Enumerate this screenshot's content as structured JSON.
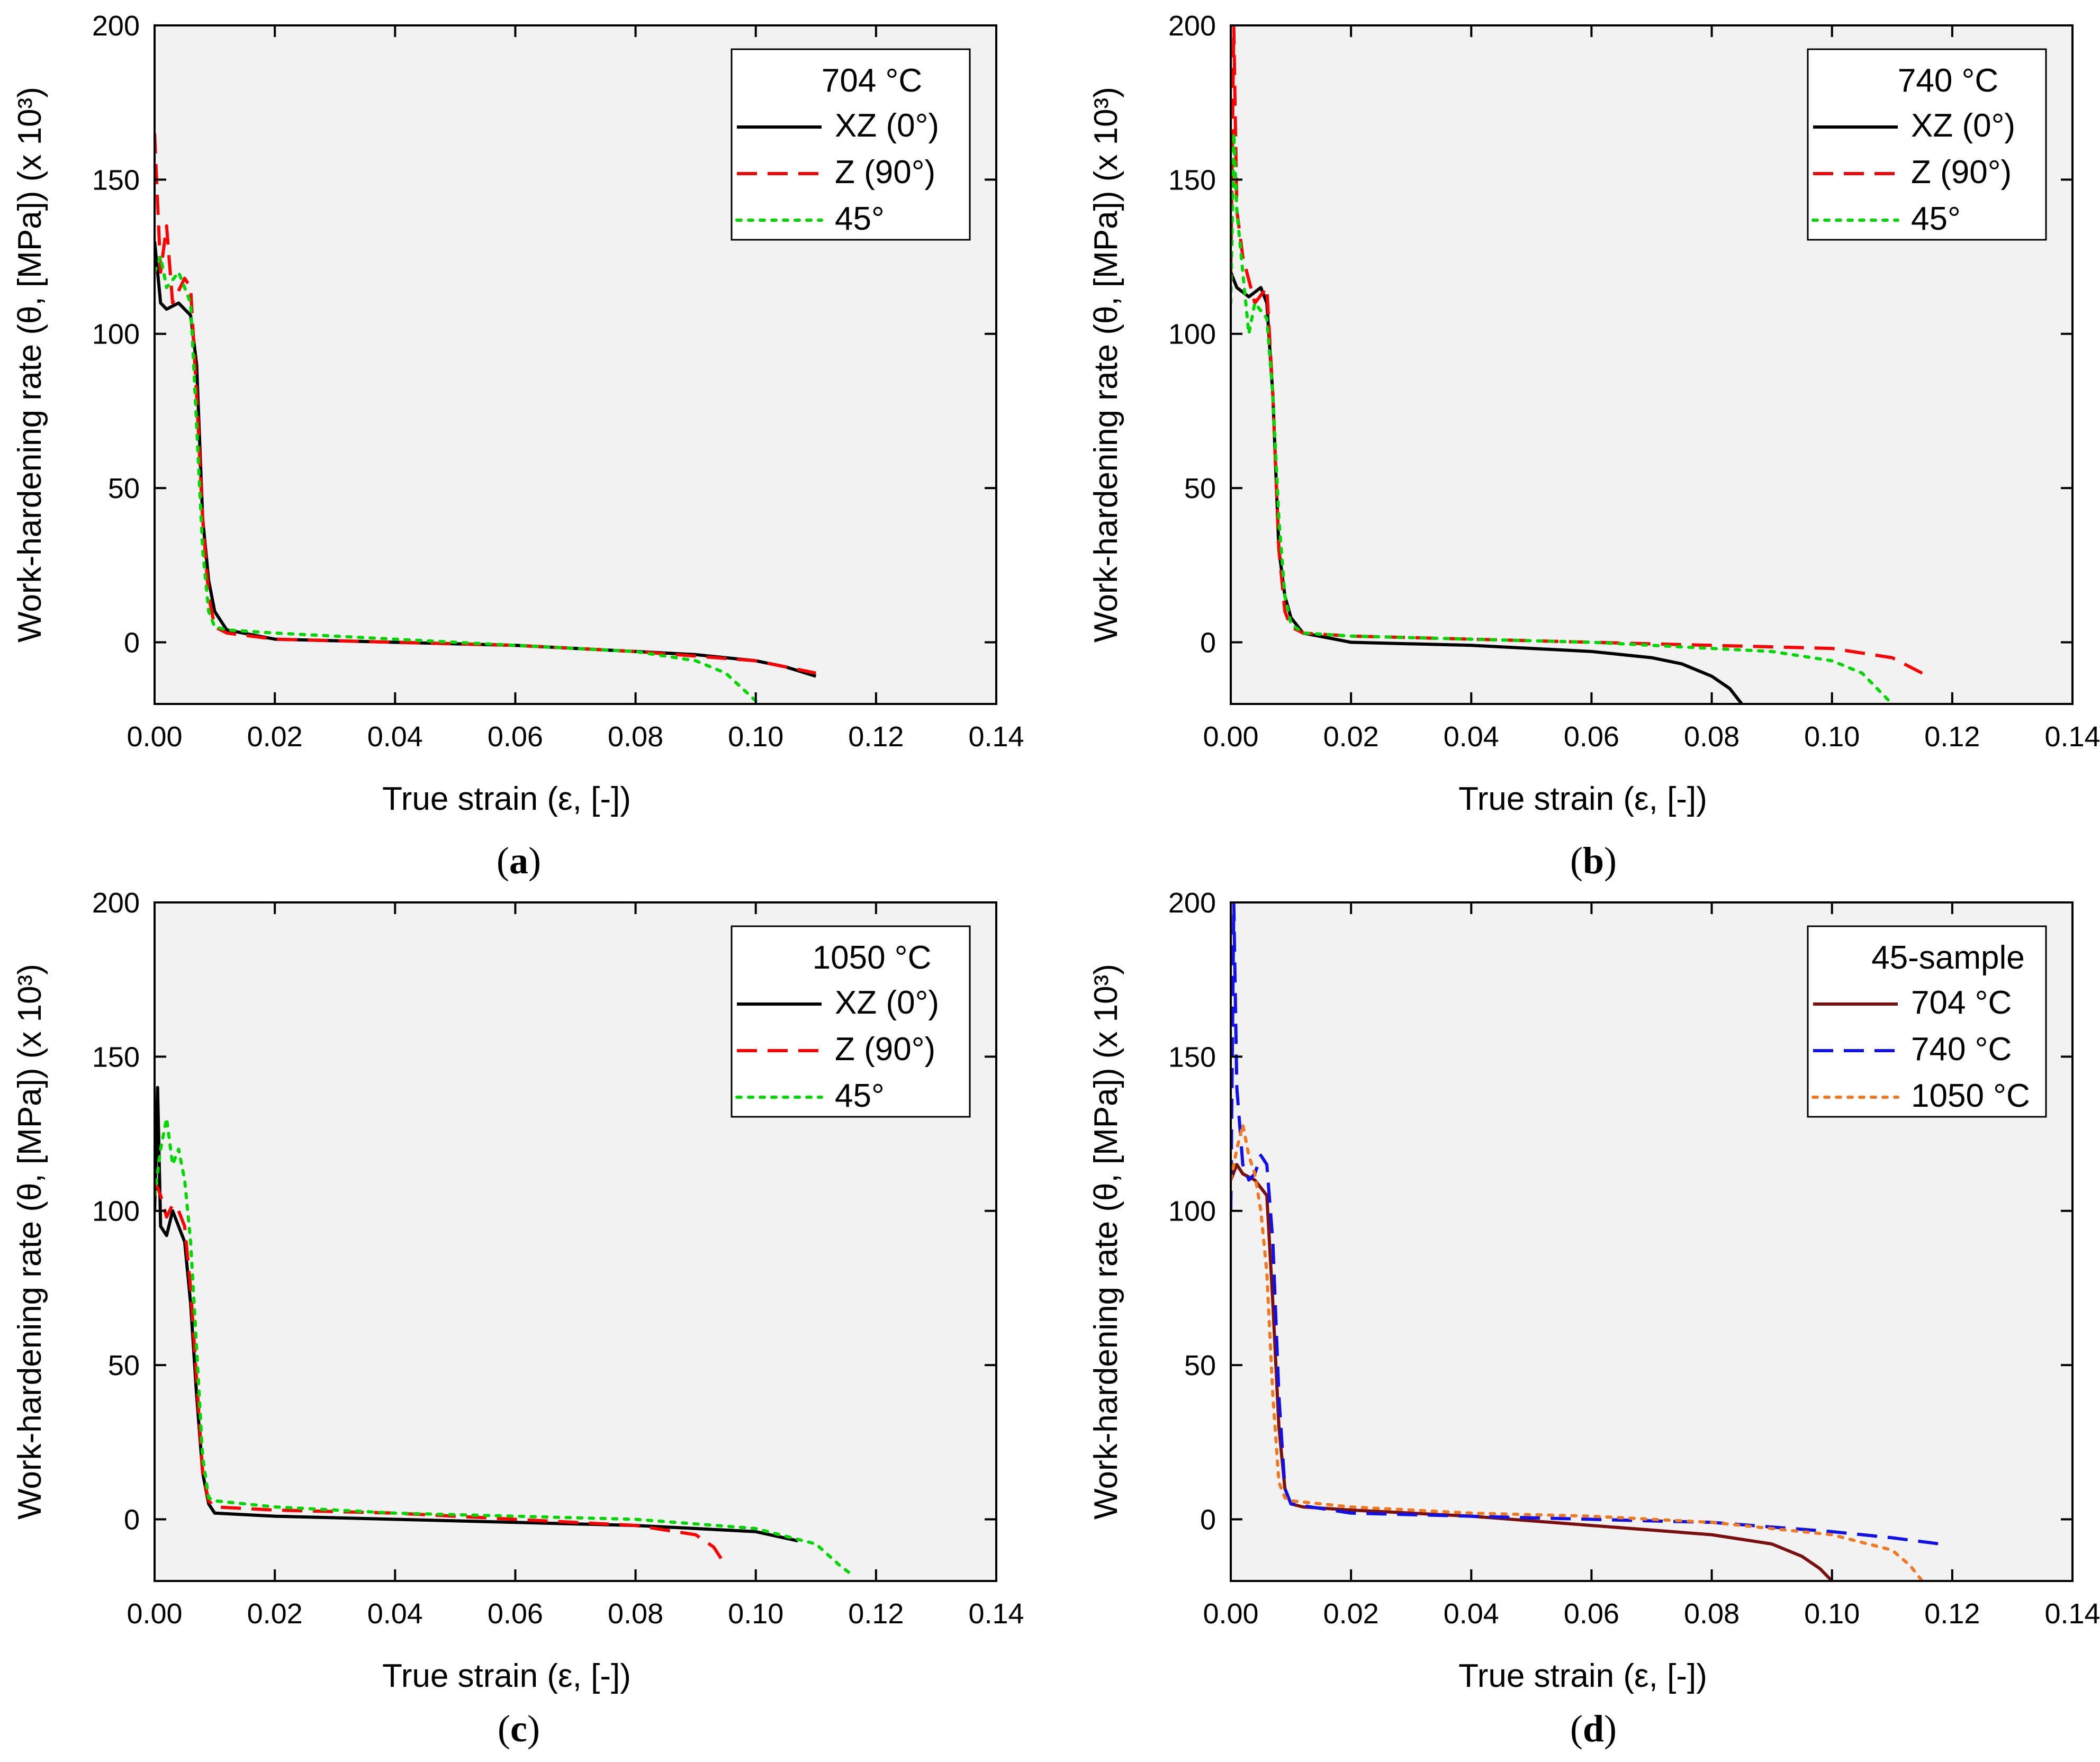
{
  "figure": {
    "panel_labels": [
      "(a)",
      "(b)",
      "(c)",
      "(d)"
    ]
  },
  "chart_data": [
    {
      "type": "line",
      "panel": "a",
      "xlabel": "True strain (ε, [-])",
      "ylabel": "Work-hardening rate (θ, [MPa]) (x 10³)",
      "xlim": [
        0,
        0.14
      ],
      "ylim": [
        -20,
        200
      ],
      "xticks": [
        "0.00",
        "0.02",
        "0.04",
        "0.06",
        "0.08",
        "0.10",
        "0.12",
        "0.14"
      ],
      "yticks": [
        "0",
        "50",
        "100",
        "150",
        "200"
      ],
      "grid": false,
      "legend_title": "704 °C",
      "legend_position": "top-right",
      "series": [
        {
          "name": "XZ (0°)",
          "color": "#000000",
          "dash": "solid",
          "x": [
            0.0,
            0.001,
            0.002,
            0.004,
            0.006,
            0.007,
            0.008,
            0.009,
            0.01,
            0.012,
            0.02,
            0.04,
            0.06,
            0.08,
            0.09,
            0.1,
            0.105,
            0.11
          ],
          "y": [
            130,
            110,
            108,
            110,
            106,
            90,
            40,
            20,
            10,
            4,
            1,
            0,
            -1,
            -3,
            -4,
            -6,
            -8,
            -11
          ]
        },
        {
          "name": "Z (90°)",
          "color": "#ff0000",
          "dash": "dashed",
          "x": [
            0.0,
            0.001,
            0.002,
            0.003,
            0.005,
            0.006,
            0.007,
            0.008,
            0.009,
            0.01,
            0.012,
            0.02,
            0.04,
            0.06,
            0.08,
            0.1,
            0.11
          ],
          "y": [
            165,
            120,
            135,
            110,
            118,
            115,
            80,
            40,
            15,
            5,
            3,
            1,
            0,
            -1,
            -3,
            -6,
            -10
          ]
        },
        {
          "name": "45°",
          "color": "#00d800",
          "dash": "dotted",
          "x": [
            0.0,
            0.001,
            0.002,
            0.004,
            0.006,
            0.007,
            0.008,
            0.009,
            0.01,
            0.012,
            0.02,
            0.04,
            0.06,
            0.08,
            0.09,
            0.095,
            0.1
          ],
          "y": [
            120,
            125,
            115,
            120,
            110,
            70,
            30,
            10,
            5,
            4,
            3,
            1,
            -1,
            -3,
            -6,
            -10,
            -19
          ]
        }
      ]
    },
    {
      "type": "line",
      "panel": "b",
      "xlabel": "True strain (ε, [-])",
      "ylabel": "Work-hardening rate (θ, [MPa]) (x 10³)",
      "xlim": [
        0,
        0.14
      ],
      "ylim": [
        -20,
        200
      ],
      "xticks": [
        "0.00",
        "0.02",
        "0.04",
        "0.06",
        "0.08",
        "0.10",
        "0.12",
        "0.14"
      ],
      "yticks": [
        "0",
        "50",
        "100",
        "150",
        "200"
      ],
      "grid": false,
      "legend_title": "740 °C",
      "legend_position": "top-right",
      "series": [
        {
          "name": "XZ (0°)",
          "color": "#000000",
          "dash": "solid",
          "x": [
            0.0,
            0.001,
            0.003,
            0.005,
            0.006,
            0.007,
            0.008,
            0.009,
            0.01,
            0.012,
            0.02,
            0.04,
            0.06,
            0.07,
            0.075,
            0.08,
            0.083,
            0.085
          ],
          "y": [
            120,
            115,
            112,
            115,
            110,
            80,
            30,
            15,
            8,
            3,
            0,
            -1,
            -3,
            -5,
            -7,
            -11,
            -15,
            -20
          ]
        },
        {
          "name": "Z (90°)",
          "color": "#ff0000",
          "dash": "dashed",
          "x": [
            0.0,
            0.0005,
            0.001,
            0.002,
            0.004,
            0.006,
            0.007,
            0.008,
            0.009,
            0.01,
            0.012,
            0.02,
            0.04,
            0.06,
            0.08,
            0.1,
            0.11,
            0.116
          ],
          "y": [
            120,
            200,
            140,
            125,
            110,
            115,
            80,
            30,
            10,
            5,
            3,
            2,
            1,
            0,
            -1,
            -2,
            -5,
            -11
          ]
        },
        {
          "name": "45°",
          "color": "#00d800",
          "dash": "dotted",
          "x": [
            0.0,
            0.0005,
            0.001,
            0.002,
            0.003,
            0.004,
            0.006,
            0.007,
            0.008,
            0.009,
            0.01,
            0.012,
            0.02,
            0.04,
            0.06,
            0.08,
            0.09,
            0.1,
            0.105,
            0.11
          ],
          "y": [
            110,
            165,
            140,
            120,
            100,
            110,
            105,
            80,
            40,
            15,
            6,
            3,
            2,
            1,
            0,
            -2,
            -3,
            -6,
            -10,
            -20
          ]
        }
      ]
    },
    {
      "type": "line",
      "panel": "c",
      "xlabel": "True strain (ε, [-])",
      "ylabel": "Work-hardening rate (θ, [MPa]) (x 10³)",
      "xlim": [
        0,
        0.14
      ],
      "ylim": [
        -20,
        200
      ],
      "xticks": [
        "0.00",
        "0.02",
        "0.04",
        "0.06",
        "0.08",
        "0.10",
        "0.12",
        "0.14"
      ],
      "yticks": [
        "0",
        "50",
        "100",
        "150",
        "200"
      ],
      "grid": false,
      "legend_title": "1050 °C",
      "legend_position": "top-right",
      "series": [
        {
          "name": "XZ (0°)",
          "color": "#000000",
          "dash": "solid",
          "x": [
            0.0,
            0.0005,
            0.001,
            0.002,
            0.003,
            0.004,
            0.005,
            0.006,
            0.007,
            0.008,
            0.009,
            0.01,
            0.02,
            0.04,
            0.06,
            0.08,
            0.09,
            0.1,
            0.107
          ],
          "y": [
            100,
            140,
            95,
            92,
            100,
            95,
            90,
            70,
            40,
            15,
            5,
            2,
            1,
            0,
            -1,
            -2,
            -3,
            -4,
            -7
          ]
        },
        {
          "name": "Z (90°)",
          "color": "#ff0000",
          "dash": "dashed",
          "x": [
            0.0,
            0.001,
            0.002,
            0.003,
            0.004,
            0.005,
            0.006,
            0.007,
            0.008,
            0.009,
            0.01,
            0.02,
            0.04,
            0.06,
            0.08,
            0.09,
            0.093,
            0.095
          ],
          "y": [
            110,
            105,
            98,
            102,
            100,
            95,
            75,
            45,
            15,
            6,
            4,
            3,
            2,
            0,
            -2,
            -5,
            -9,
            -15
          ]
        },
        {
          "name": "45°",
          "color": "#00d800",
          "dash": "dotted",
          "x": [
            0.0,
            0.001,
            0.002,
            0.003,
            0.004,
            0.005,
            0.006,
            0.007,
            0.008,
            0.009,
            0.01,
            0.02,
            0.04,
            0.06,
            0.08,
            0.1,
            0.11,
            0.114,
            0.116
          ],
          "y": [
            105,
            120,
            130,
            115,
            120,
            110,
            90,
            55,
            20,
            7,
            6,
            4,
            2,
            1,
            0,
            -3,
            -8,
            -15,
            -18
          ]
        }
      ]
    },
    {
      "type": "line",
      "panel": "d",
      "xlabel": "True strain (ε, [-])",
      "ylabel": "Work-hardening rate (θ, [MPa]) (x 10³)",
      "xlim": [
        0,
        0.14
      ],
      "ylim": [
        -20,
        200
      ],
      "xticks": [
        "0.00",
        "0.02",
        "0.04",
        "0.06",
        "0.08",
        "0.10",
        "0.12",
        "0.14"
      ],
      "yticks": [
        "0",
        "50",
        "100",
        "150",
        "200"
      ],
      "grid": false,
      "legend_title": "45-sample",
      "legend_position": "top-right",
      "series": [
        {
          "name": "704 °C",
          "color": "#7b0f0f",
          "dash": "solid",
          "x": [
            0.0,
            0.001,
            0.002,
            0.004,
            0.006,
            0.007,
            0.008,
            0.009,
            0.01,
            0.012,
            0.02,
            0.04,
            0.06,
            0.08,
            0.09,
            0.095,
            0.098,
            0.1
          ],
          "y": [
            110,
            115,
            112,
            110,
            105,
            70,
            30,
            10,
            5,
            4,
            3,
            1,
            -2,
            -5,
            -8,
            -12,
            -16,
            -20
          ]
        },
        {
          "name": "740 °C",
          "color": "#1010ee",
          "dash": "dashed",
          "x": [
            0.0,
            0.0005,
            0.001,
            0.002,
            0.003,
            0.004,
            0.005,
            0.006,
            0.007,
            0.008,
            0.009,
            0.01,
            0.02,
            0.04,
            0.06,
            0.08,
            0.1,
            0.11,
            0.118
          ],
          "y": [
            100,
            200,
            140,
            115,
            110,
            112,
            118,
            115,
            90,
            40,
            10,
            5,
            2,
            1,
            0,
            -1,
            -4,
            -6,
            -8
          ]
        },
        {
          "name": "1050 °C",
          "color": "#f07820",
          "dash": "dotted",
          "x": [
            0.0,
            0.001,
            0.002,
            0.003,
            0.004,
            0.005,
            0.006,
            0.007,
            0.008,
            0.009,
            0.01,
            0.02,
            0.04,
            0.06,
            0.08,
            0.1,
            0.11,
            0.113,
            0.115
          ],
          "y": [
            110,
            120,
            128,
            118,
            112,
            100,
            80,
            40,
            12,
            7,
            6,
            4,
            2,
            1,
            -1,
            -5,
            -10,
            -15,
            -20
          ]
        }
      ]
    }
  ]
}
